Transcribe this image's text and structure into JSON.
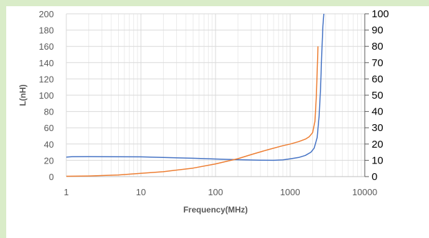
{
  "chart_data": {
    "type": "line",
    "title": "",
    "xlabel": "Frequency(MHz)",
    "ylabel": "L(nH)",
    "y2label": "",
    "x_scale": "log",
    "xlim": [
      1,
      10000
    ],
    "ylim": [
      0,
      200
    ],
    "y2lim": [
      0,
      100
    ],
    "x_ticks": [
      "1",
      "10",
      "100",
      "1000",
      "10000"
    ],
    "y_ticks": [
      "0",
      "20",
      "40",
      "60",
      "80",
      "100",
      "120",
      "140",
      "160",
      "180",
      "200"
    ],
    "y2_ticks": [
      "0",
      "10",
      "20",
      "30",
      "40",
      "50",
      "60",
      "70",
      "80",
      "90",
      "100"
    ],
    "grid": true,
    "series": [
      {
        "axis": "left",
        "color": "#4472c4",
        "points": [
          [
            1,
            24
          ],
          [
            1.2,
            24.5
          ],
          [
            2,
            24.6
          ],
          [
            5,
            24.4
          ],
          [
            10,
            24.2
          ],
          [
            20,
            23.6
          ],
          [
            50,
            22.5
          ],
          [
            100,
            21.6
          ],
          [
            200,
            20.8
          ],
          [
            400,
            20.2
          ],
          [
            600,
            20
          ],
          [
            800,
            20.5
          ],
          [
            1000,
            21.8
          ],
          [
            1300,
            23.5
          ],
          [
            1600,
            26
          ],
          [
            1900,
            30
          ],
          [
            2100,
            35
          ],
          [
            2300,
            48
          ],
          [
            2450,
            75
          ],
          [
            2560,
            110
          ],
          [
            2650,
            150
          ],
          [
            2750,
            185
          ],
          [
            2830,
            200
          ]
        ]
      },
      {
        "axis": "right",
        "color": "#ed7d31",
        "points": [
          [
            1,
            0.2
          ],
          [
            2,
            0.4
          ],
          [
            5,
            1
          ],
          [
            10,
            2
          ],
          [
            20,
            3
          ],
          [
            50,
            5.2
          ],
          [
            100,
            7.8
          ],
          [
            200,
            11
          ],
          [
            300,
            13.5
          ],
          [
            500,
            16.5
          ],
          [
            800,
            19
          ],
          [
            1000,
            20
          ],
          [
            1300,
            21.5
          ],
          [
            1600,
            23
          ],
          [
            1800,
            24.5
          ],
          [
            2000,
            27
          ],
          [
            2150,
            34
          ],
          [
            2250,
            50
          ],
          [
            2330,
            72
          ],
          [
            2360,
            80
          ]
        ]
      }
    ]
  }
}
